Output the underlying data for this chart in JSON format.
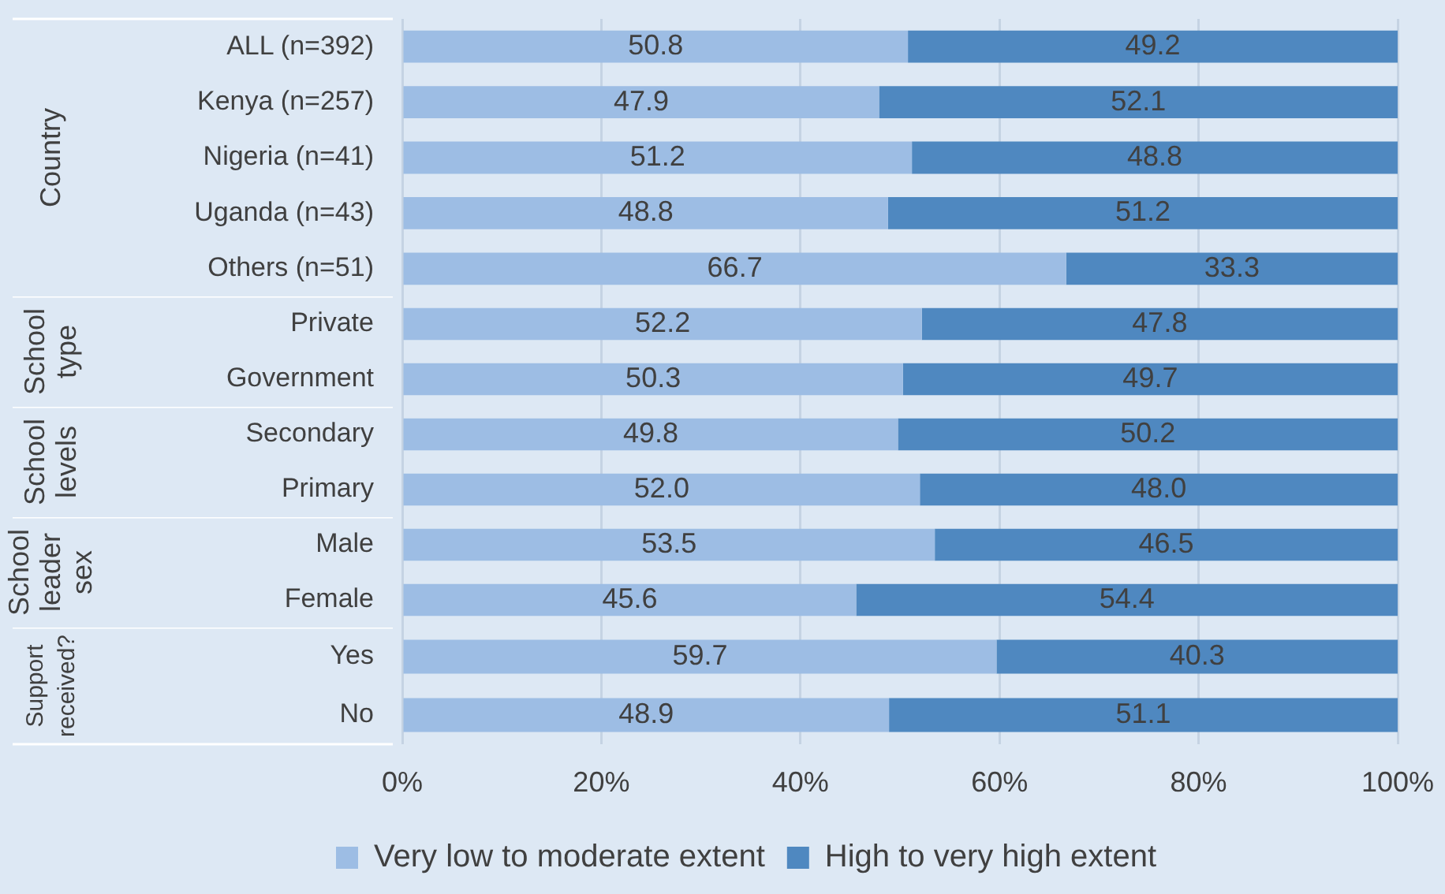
{
  "chart_data": [
    {
      "type": "bar",
      "orientation": "horizontal",
      "stacked": true,
      "ylabel": "Country",
      "categories": [
        "ALL (n=392)",
        "Kenya (n=257)",
        "Nigeria (n=41)",
        "Uganda (n=43)",
        "Others (n=51)"
      ],
      "series": [
        {
          "color": "#9dbde4",
          "values": [
            50.8,
            47.9,
            51.2,
            48.8,
            66.7
          ],
          "value_labels": [
            "50.8",
            "47.9",
            "51.2",
            "48.8",
            "66.7"
          ]
        },
        {
          "color": "#4f88c0",
          "values": [
            49.2,
            52.1,
            48.8,
            51.2,
            33.3
          ],
          "value_labels": [
            "49.2",
            "52.1",
            "48.8",
            "51.2",
            "33.3"
          ]
        }
      ],
      "xlim": [
        0,
        100
      ],
      "xticks": [
        {
          "value": 0,
          "label": null
        },
        {
          "value": 20,
          "label": null
        },
        {
          "value": 40,
          "label": null
        },
        {
          "value": 60,
          "label": null
        },
        {
          "value": 80,
          "label": null
        },
        {
          "value": 100,
          "label": null
        }
      ],
      "tick_labels": "y",
      "grid": "x"
    },
    {
      "type": "bar",
      "orientation": "horizontal",
      "stacked": true,
      "ylabel": "School type",
      "categories": [
        "Private",
        "Government"
      ],
      "series": [
        {
          "color": "#9dbde4",
          "values": [
            52.2,
            50.3
          ],
          "value_labels": [
            "52.2",
            "50.3"
          ]
        },
        {
          "color": "#4f88c0",
          "values": [
            47.8,
            49.7
          ],
          "value_labels": [
            "47.8",
            "49.7"
          ]
        }
      ],
      "xlim": [
        0,
        100
      ],
      "xticks": [
        {
          "value": 0,
          "label": null
        },
        {
          "value": 20,
          "label": null
        },
        {
          "value": 40,
          "label": null
        },
        {
          "value": 60,
          "label": null
        },
        {
          "value": 80,
          "label": null
        },
        {
          "value": 100,
          "label": null
        }
      ],
      "tick_labels": "y",
      "grid": "x"
    },
    {
      "type": "bar",
      "orientation": "horizontal",
      "stacked": true,
      "ylabel": "School levels",
      "categories": [
        "Secondary",
        "Primary"
      ],
      "series": [
        {
          "color": "#9dbde4",
          "values": [
            49.8,
            52.0
          ],
          "value_labels": [
            "49.8",
            "52.0"
          ]
        },
        {
          "color": "#4f88c0",
          "values": [
            50.2,
            48.0
          ],
          "value_labels": [
            "50.2",
            "48.0"
          ]
        }
      ],
      "xlim": [
        0,
        100
      ],
      "xticks": [
        {
          "value": 0,
          "label": null
        },
        {
          "value": 20,
          "label": null
        },
        {
          "value": 40,
          "label": null
        },
        {
          "value": 60,
          "label": null
        },
        {
          "value": 80,
          "label": null
        },
        {
          "value": 100,
          "label": null
        }
      ],
      "tick_labels": "y",
      "grid": "x"
    },
    {
      "type": "bar",
      "orientation": "horizontal",
      "stacked": true,
      "ylabel": "School leader sex",
      "categories": [
        "Male",
        "Female"
      ],
      "series": [
        {
          "color": "#9dbde4",
          "values": [
            53.5,
            45.6
          ],
          "value_labels": [
            "53.5",
            "45.6"
          ]
        },
        {
          "color": "#4f88c0",
          "values": [
            46.5,
            54.4
          ],
          "value_labels": [
            "46.5",
            "54.4"
          ]
        }
      ],
      "xlim": [
        0,
        100
      ],
      "xticks": [
        {
          "value": 0,
          "label": null
        },
        {
          "value": 20,
          "label": null
        },
        {
          "value": 40,
          "label": null
        },
        {
          "value": 60,
          "label": null
        },
        {
          "value": 80,
          "label": null
        },
        {
          "value": 100,
          "label": null
        }
      ],
      "tick_labels": "y",
      "grid": "x"
    },
    {
      "type": "bar",
      "orientation": "horizontal",
      "stacked": true,
      "ylabel": "Support received?",
      "categories": [
        "Yes",
        "No"
      ],
      "series": [
        {
          "name": "Very low to moderate extent",
          "color": "#9dbde4",
          "values": [
            59.7,
            48.9
          ],
          "value_labels": [
            "59.7",
            "48.9"
          ]
        },
        {
          "name": "High to very high extent",
          "color": "#4f88c0",
          "values": [
            40.3,
            51.1
          ],
          "value_labels": [
            "40.3",
            "51.1"
          ]
        }
      ],
      "xlim": [
        0,
        100
      ],
      "xticks": [
        {
          "value": 0,
          "label": "0%"
        },
        {
          "value": 20,
          "label": "20%"
        },
        {
          "value": 40,
          "label": "40%"
        },
        {
          "value": 60,
          "label": "60%"
        },
        {
          "value": 80,
          "label": "80%"
        },
        {
          "value": 100,
          "label": "100%"
        }
      ],
      "grid": "x",
      "legend": "bottom"
    }
  ]
}
